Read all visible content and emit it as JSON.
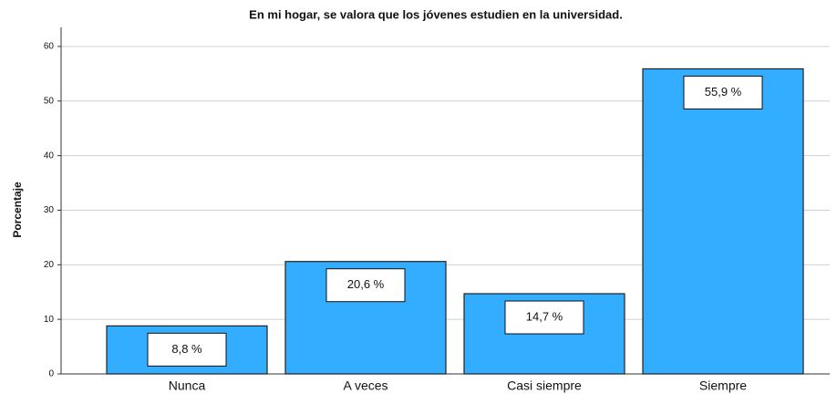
{
  "chart_data": {
    "type": "bar",
    "title": "En mi hogar, se valora que los jóvenes estudien en la universidad.",
    "y_label": "Porcentaje",
    "categories": [
      "Nunca",
      "A veces",
      "Casi siempre",
      "Siempre"
    ],
    "values": [
      8.8,
      20.6,
      14.7,
      55.9
    ],
    "value_labels": [
      "8,8 %",
      "20,6 %",
      "14,7 %",
      "55,9 %"
    ],
    "color": "#33adff",
    "ylim": [
      0,
      63.5
    ],
    "yticks": [
      0,
      10,
      20,
      30,
      40,
      50,
      60
    ],
    "grid": true
  }
}
